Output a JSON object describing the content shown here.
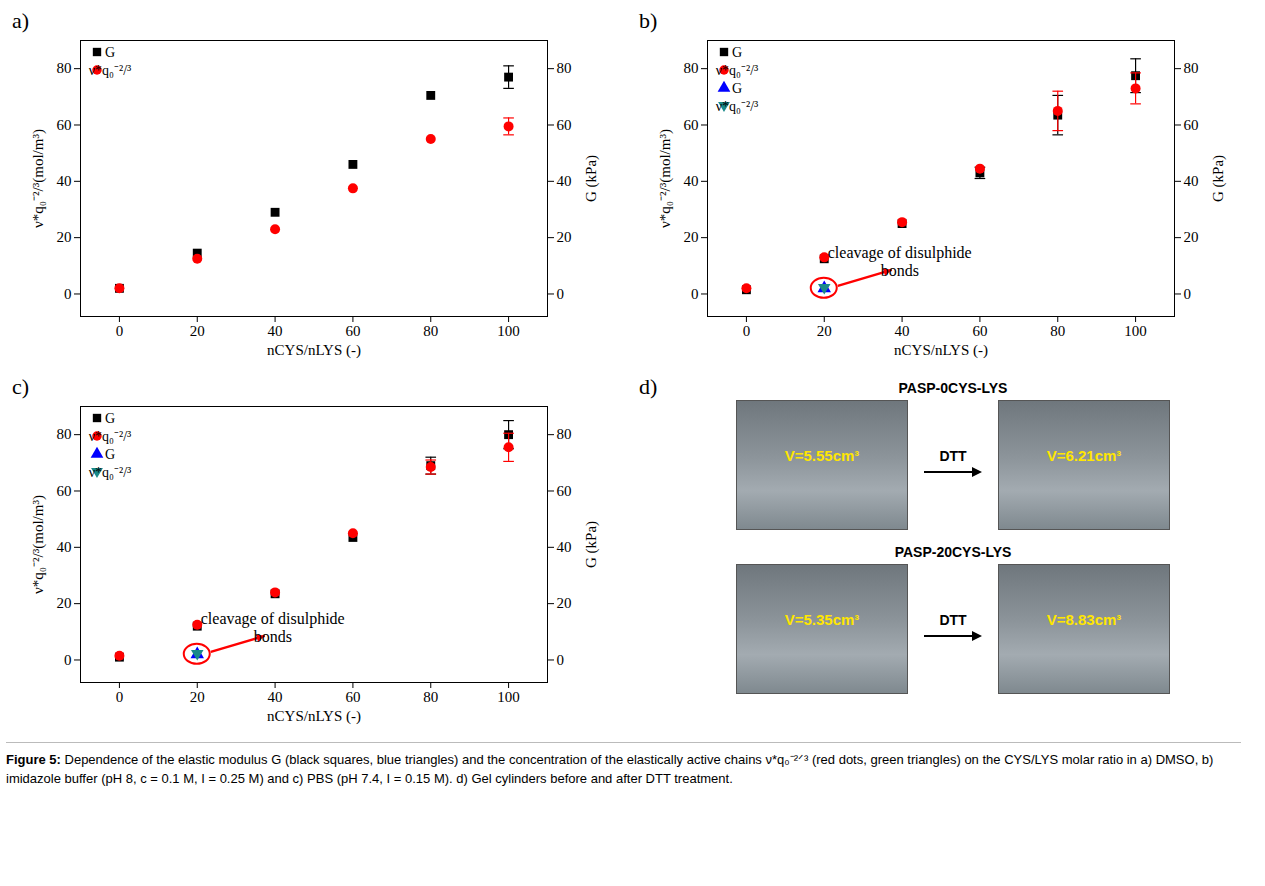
{
  "chart_data": [
    {
      "type": "scatter",
      "panel": "a)",
      "xlabel": "nCYS/nLYS (-)",
      "ylabel": "ν*q₀⁻²/³(mol/m³)",
      "y2label": "G (kPa)",
      "x": [
        0,
        20,
        40,
        60,
        80,
        100
      ],
      "xlim": [
        -10,
        110
      ],
      "xticks": [
        0,
        20,
        40,
        60,
        80,
        100
      ],
      "ylim": [
        -8,
        90
      ],
      "yticks": [
        0,
        20,
        40,
        60,
        80
      ],
      "y2lim": [
        -8,
        90
      ],
      "y2ticks": [
        0,
        20,
        40,
        60,
        80
      ],
      "legend": "top-left",
      "series": [
        {
          "name": "G",
          "color": "#000000",
          "marker": "square",
          "axis": "y2",
          "values": [
            2,
            14.5,
            29,
            46,
            70.5,
            77
          ],
          "errors": [
            null,
            null,
            null,
            null,
            null,
            4
          ]
        },
        {
          "name": "ν*q₀⁻²/³",
          "color": "#ff0000",
          "marker": "circle",
          "values": [
            2,
            12.5,
            23,
            37.5,
            55,
            59.5
          ],
          "errors": [
            null,
            null,
            null,
            null,
            null,
            3
          ]
        }
      ]
    },
    {
      "type": "scatter",
      "panel": "b)",
      "xlabel": "nCYS/nLYS (-)",
      "ylabel": "ν*q₀⁻²/³(mol/m³)",
      "y2label": "G (kPa)",
      "x": [
        0,
        20,
        40,
        60,
        80,
        100
      ],
      "xlim": [
        -10,
        110
      ],
      "xticks": [
        0,
        20,
        40,
        60,
        80,
        100
      ],
      "ylim": [
        -8,
        90
      ],
      "yticks": [
        0,
        20,
        40,
        60,
        80
      ],
      "y2lim": [
        -8,
        90
      ],
      "y2ticks": [
        0,
        20,
        40,
        60,
        80
      ],
      "legend": "top-left",
      "series": [
        {
          "name": "G",
          "color": "#000000",
          "marker": "square",
          "axis": "y2",
          "values": [
            1.5,
            12.5,
            25,
            43,
            63.5,
            77.5
          ],
          "errors": [
            null,
            null,
            null,
            2,
            7,
            6
          ]
        },
        {
          "name": "ν*q₀⁻²/³",
          "color": "#ff0000",
          "marker": "circle",
          "values": [
            2,
            13,
            25.5,
            44.5,
            65,
            73
          ],
          "errors": [
            null,
            null,
            null,
            null,
            7,
            5.5
          ]
        },
        {
          "name": "G",
          "color": "#0000ff",
          "marker": "triangle",
          "axis": "y2",
          "x": [
            20
          ],
          "values": [
            2
          ]
        },
        {
          "name": "ν*q₀⁻²/³",
          "color": "#1a8a8a",
          "marker": "triangle-down",
          "x": [
            20
          ],
          "values": [
            2
          ]
        }
      ],
      "annotations": [
        {
          "text": "cleavage of disulphide bonds",
          "x": 20,
          "y": 2
        }
      ]
    },
    {
      "type": "scatter",
      "panel": "c)",
      "xlabel": "nCYS/nLYS (-)",
      "ylabel": "ν*q₀⁻²/³(mol/m³)",
      "y2label": "G (kPa)",
      "x": [
        0,
        20,
        40,
        60,
        80,
        100
      ],
      "xlim": [
        -10,
        110
      ],
      "xticks": [
        0,
        20,
        40,
        60,
        80,
        100
      ],
      "ylim": [
        -8,
        90
      ],
      "yticks": [
        0,
        20,
        40,
        60,
        80
      ],
      "y2lim": [
        -8,
        90
      ],
      "y2ticks": [
        0,
        20,
        40,
        60,
        80
      ],
      "legend": "top-left",
      "series": [
        {
          "name": "G",
          "color": "#000000",
          "marker": "square",
          "axis": "y2",
          "values": [
            1,
            12,
            23.5,
            43.5,
            69,
            80
          ],
          "errors": [
            null,
            null,
            null,
            null,
            3,
            5
          ]
        },
        {
          "name": "ν*q₀⁻²/³",
          "color": "#ff0000",
          "marker": "circle",
          "values": [
            1.5,
            12.5,
            24,
            45,
            68.5,
            75.5
          ],
          "errors": [
            null,
            null,
            null,
            null,
            2.5,
            5
          ]
        },
        {
          "name": "G",
          "color": "#0000ff",
          "marker": "triangle",
          "axis": "y2",
          "x": [
            20
          ],
          "values": [
            2
          ]
        },
        {
          "name": "ν*q₀⁻²/³",
          "color": "#1a8a8a",
          "marker": "triangle-down",
          "x": [
            20
          ],
          "values": [
            2
          ]
        }
      ],
      "annotations": [
        {
          "text": "cleavage of disulphide bonds",
          "x": 20,
          "y": 2
        }
      ]
    }
  ],
  "panel_d": {
    "panel": "d)",
    "groups": [
      {
        "title": "PASP-0CYS-LYS",
        "before": "V=5.55cm³",
        "treatment": "DTT",
        "after": "V=6.21cm³"
      },
      {
        "title": "PASP-20CYS-LYS",
        "before": "V=5.35cm³",
        "treatment": "DTT",
        "after": "V=8.83cm³"
      }
    ]
  },
  "caption": {
    "label": "Figure 5:",
    "text": "Dependence of the elastic modulus G (black squares, blue triangles) and the concentration of the elastically active chains ν*q₀⁻²ᐟ³ (red dots, green triangles) on the CYS/LYS molar ratio in a) DMSO, b) imidazole buffer (pH 8, c = 0.1 M, I = 0.25 M) and c) PBS (pH 7.4, I = 0.15 M). d) Gel cylinders before and after DTT treatment."
  }
}
